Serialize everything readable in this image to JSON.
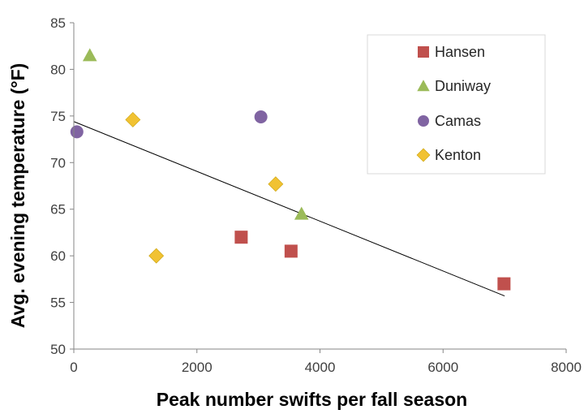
{
  "chart_data": {
    "type": "scatter",
    "title": "",
    "xlabel": "Peak number swifts per fall season",
    "ylabel": "Avg. evening temperature (°F)",
    "xlim": [
      0,
      8000
    ],
    "ylim": [
      50,
      85
    ],
    "xticks": [
      "0",
      "2000",
      "4000",
      "6000",
      "8000"
    ],
    "yticks": [
      "50",
      "55",
      "60",
      "65",
      "70",
      "75",
      "80",
      "85"
    ],
    "grid": false,
    "legend_position": "top-right",
    "series": [
      {
        "name": "Hansen",
        "marker": "square",
        "color": "#c0504d",
        "points": [
          {
            "x": 2720,
            "y": 62.0
          },
          {
            "x": 3530,
            "y": 60.5
          },
          {
            "x": 6990,
            "y": 57.0
          }
        ]
      },
      {
        "name": "Duniway",
        "marker": "triangle",
        "color": "#9bbb59",
        "points": [
          {
            "x": 260,
            "y": 81.5
          },
          {
            "x": 3700,
            "y": 64.5
          }
        ]
      },
      {
        "name": "Camas",
        "marker": "circle",
        "color": "#8064a2",
        "points": [
          {
            "x": 50,
            "y": 73.3
          },
          {
            "x": 3040,
            "y": 74.9
          }
        ]
      },
      {
        "name": "Kenton",
        "marker": "diamond",
        "color": "#f1c232",
        "points": [
          {
            "x": 960,
            "y": 74.6
          },
          {
            "x": 1340,
            "y": 60.0
          },
          {
            "x": 3280,
            "y": 67.7
          }
        ]
      }
    ],
    "trendline": {
      "type": "linear",
      "color": "#000000",
      "from": {
        "x": 0,
        "y": 74.4
      },
      "to": {
        "x": 7000,
        "y": 55.7
      }
    }
  }
}
